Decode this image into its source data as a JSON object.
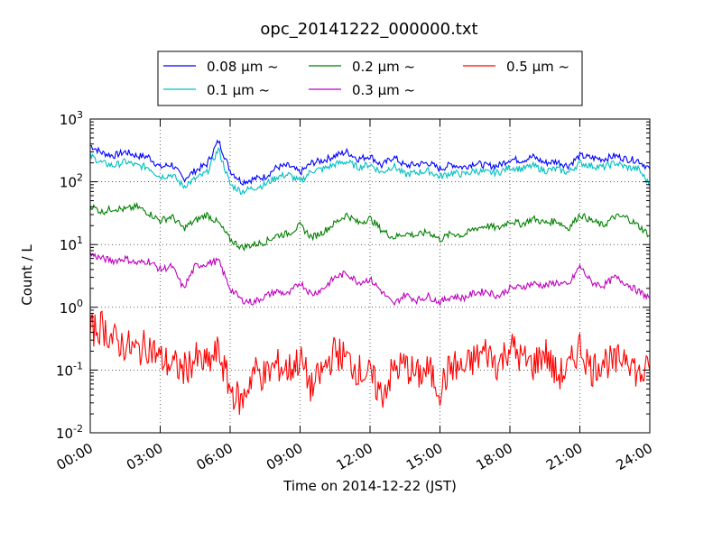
{
  "chart_data": {
    "type": "line",
    "title": "opc_20141222_000000.txt",
    "xlabel": "Time on 2014-12-22 (JST)",
    "ylabel": "Count / L",
    "yscale": "log",
    "ylim": [
      0.01,
      1000
    ],
    "y_ticks": [
      {
        "value": 0.01,
        "base": "10",
        "exp": "-2"
      },
      {
        "value": 0.1,
        "base": "10",
        "exp": "-1"
      },
      {
        "value": 1,
        "base": "10",
        "exp": "0"
      },
      {
        "value": 10,
        "base": "10",
        "exp": "1"
      },
      {
        "value": 100,
        "base": "10",
        "exp": "2"
      },
      {
        "value": 1000,
        "base": "10",
        "exp": "3"
      }
    ],
    "xlim": [
      "2014-12-22 00:00",
      "2014-12-23 00:00"
    ],
    "x_ticks": [
      "00:00",
      "03:00",
      "06:00",
      "09:00",
      "12:00",
      "15:00",
      "18:00",
      "21:00",
      "24:00"
    ],
    "grid": true,
    "legend_position": "top-center, above plot",
    "series": [
      {
        "name": "0.08 μm ~",
        "color": "#0000ff",
        "x": [
          "00:00",
          "00:30",
          "01:00",
          "01:30",
          "02:00",
          "02:30",
          "03:00",
          "03:30",
          "04:00",
          "04:30",
          "05:00",
          "05:30",
          "06:00",
          "06:30",
          "07:00",
          "07:30",
          "08:00",
          "08:30",
          "09:00",
          "09:30",
          "10:00",
          "10:30",
          "11:00",
          "11:30",
          "12:00",
          "12:30",
          "13:00",
          "13:30",
          "14:00",
          "14:30",
          "15:00",
          "15:30",
          "16:00",
          "16:30",
          "17:00",
          "17:30",
          "18:00",
          "18:30",
          "19:00",
          "19:30",
          "20:00",
          "20:30",
          "21:00",
          "21:30",
          "22:00",
          "22:30",
          "23:00",
          "23:30",
          "24:00"
        ],
        "values": [
          380,
          290,
          260,
          300,
          260,
          250,
          170,
          190,
          110,
          150,
          190,
          450,
          150,
          100,
          110,
          120,
          170,
          180,
          140,
          200,
          220,
          260,
          300,
          230,
          260,
          180,
          250,
          180,
          190,
          200,
          160,
          190,
          170,
          200,
          180,
          180,
          230,
          220,
          250,
          200,
          210,
          180,
          260,
          240,
          230,
          260,
          230,
          220,
          160
        ]
      },
      {
        "name": "0.1 μm ~",
        "color": "#00bfbf",
        "x": [
          "00:00",
          "00:30",
          "01:00",
          "01:30",
          "02:00",
          "02:30",
          "03:00",
          "03:30",
          "04:00",
          "04:30",
          "05:00",
          "05:30",
          "06:00",
          "06:30",
          "07:00",
          "07:30",
          "08:00",
          "08:30",
          "09:00",
          "09:30",
          "10:00",
          "10:30",
          "11:00",
          "11:30",
          "12:00",
          "12:30",
          "13:00",
          "13:30",
          "14:00",
          "14:30",
          "15:00",
          "15:30",
          "16:00",
          "16:30",
          "17:00",
          "17:30",
          "18:00",
          "18:30",
          "19:00",
          "19:30",
          "20:00",
          "20:30",
          "21:00",
          "21:30",
          "22:00",
          "22:30",
          "23:00",
          "23:30",
          "24:00"
        ],
        "values": [
          260,
          200,
          180,
          210,
          180,
          170,
          120,
          130,
          85,
          110,
          140,
          330,
          90,
          70,
          80,
          90,
          120,
          130,
          100,
          150,
          160,
          190,
          210,
          170,
          190,
          140,
          180,
          130,
          140,
          150,
          120,
          140,
          130,
          150,
          140,
          140,
          170,
          160,
          180,
          150,
          160,
          140,
          200,
          180,
          170,
          200,
          170,
          160,
          90
        ]
      },
      {
        "name": "0.2 μm ~",
        "color": "#008000",
        "x": [
          "00:00",
          "00:30",
          "01:00",
          "01:30",
          "02:00",
          "02:30",
          "03:00",
          "03:30",
          "04:00",
          "04:30",
          "05:00",
          "05:30",
          "06:00",
          "06:30",
          "07:00",
          "07:30",
          "08:00",
          "08:30",
          "09:00",
          "09:30",
          "10:00",
          "10:30",
          "11:00",
          "11:30",
          "12:00",
          "12:30",
          "13:00",
          "13:30",
          "14:00",
          "14:30",
          "15:00",
          "15:30",
          "16:00",
          "16:30",
          "17:00",
          "17:30",
          "18:00",
          "18:30",
          "19:00",
          "19:30",
          "20:00",
          "20:30",
          "21:00",
          "21:30",
          "22:00",
          "22:30",
          "23:00",
          "23:30",
          "24:00"
        ],
        "values": [
          42,
          33,
          38,
          36,
          40,
          32,
          24,
          28,
          18,
          24,
          30,
          22,
          12,
          9,
          10,
          11,
          14,
          15,
          20,
          13,
          16,
          22,
          30,
          22,
          26,
          17,
          13,
          15,
          14,
          16,
          12,
          15,
          14,
          18,
          20,
          18,
          24,
          21,
          26,
          22,
          24,
          18,
          30,
          24,
          20,
          28,
          27,
          20,
          14
        ]
      },
      {
        "name": "0.3 μm ~",
        "color": "#bf00bf",
        "x": [
          "00:00",
          "00:30",
          "01:00",
          "01:30",
          "02:00",
          "02:30",
          "03:00",
          "03:30",
          "04:00",
          "04:30",
          "05:00",
          "05:30",
          "06:00",
          "06:30",
          "07:00",
          "07:30",
          "08:00",
          "08:30",
          "09:00",
          "09:30",
          "10:00",
          "10:30",
          "11:00",
          "11:30",
          "12:00",
          "12:30",
          "13:00",
          "13:30",
          "14:00",
          "14:30",
          "15:00",
          "15:30",
          "16:00",
          "16:30",
          "17:00",
          "17:30",
          "18:00",
          "18:30",
          "19:00",
          "19:30",
          "20:00",
          "20:30",
          "21:00",
          "21:30",
          "22:00",
          "22:30",
          "23:00",
          "23:30",
          "24:00"
        ],
        "values": [
          7,
          6,
          5.5,
          6,
          5,
          5.5,
          4,
          4.5,
          2,
          4.5,
          5,
          5.5,
          2,
          1.3,
          1.2,
          1.5,
          1.8,
          1.6,
          2.5,
          1.6,
          2,
          3,
          3.5,
          2.5,
          2.8,
          1.8,
          1.1,
          1.6,
          1.3,
          1.5,
          1.2,
          1.5,
          1.4,
          1.7,
          1.8,
          1.5,
          2,
          2.1,
          2.4,
          2.2,
          2.5,
          2.2,
          4.5,
          2.5,
          2.2,
          3,
          2.4,
          1.8,
          1.4
        ]
      },
      {
        "name": "0.5 μm ~",
        "color": "#ff0000",
        "x": [
          "00:00",
          "00:30",
          "01:00",
          "01:30",
          "02:00",
          "02:30",
          "03:00",
          "03:30",
          "04:00",
          "04:30",
          "05:00",
          "05:30",
          "06:00",
          "06:30",
          "07:00",
          "07:30",
          "08:00",
          "08:30",
          "09:00",
          "09:30",
          "10:00",
          "10:30",
          "11:00",
          "11:30",
          "12:00",
          "12:30",
          "13:00",
          "13:30",
          "14:00",
          "14:30",
          "15:00",
          "15:30",
          "16:00",
          "16:30",
          "17:00",
          "17:30",
          "18:00",
          "18:30",
          "19:00",
          "19:30",
          "20:00",
          "20:30",
          "21:00",
          "21:30",
          "22:00",
          "22:30",
          "23:00",
          "23:30",
          "24:00"
        ],
        "values": [
          0.4,
          0.5,
          0.3,
          0.25,
          0.2,
          0.25,
          0.15,
          0.12,
          0.1,
          0.15,
          0.12,
          0.2,
          0.05,
          0.03,
          0.1,
          0.08,
          0.12,
          0.1,
          0.15,
          0.05,
          0.1,
          0.2,
          0.15,
          0.1,
          0.08,
          0.04,
          0.1,
          0.12,
          0.08,
          0.1,
          0.05,
          0.12,
          0.1,
          0.15,
          0.2,
          0.12,
          0.25,
          0.15,
          0.12,
          0.2,
          0.08,
          0.1,
          0.25,
          0.1,
          0.15,
          0.12,
          0.2,
          0.08,
          0.1
        ]
      }
    ]
  }
}
